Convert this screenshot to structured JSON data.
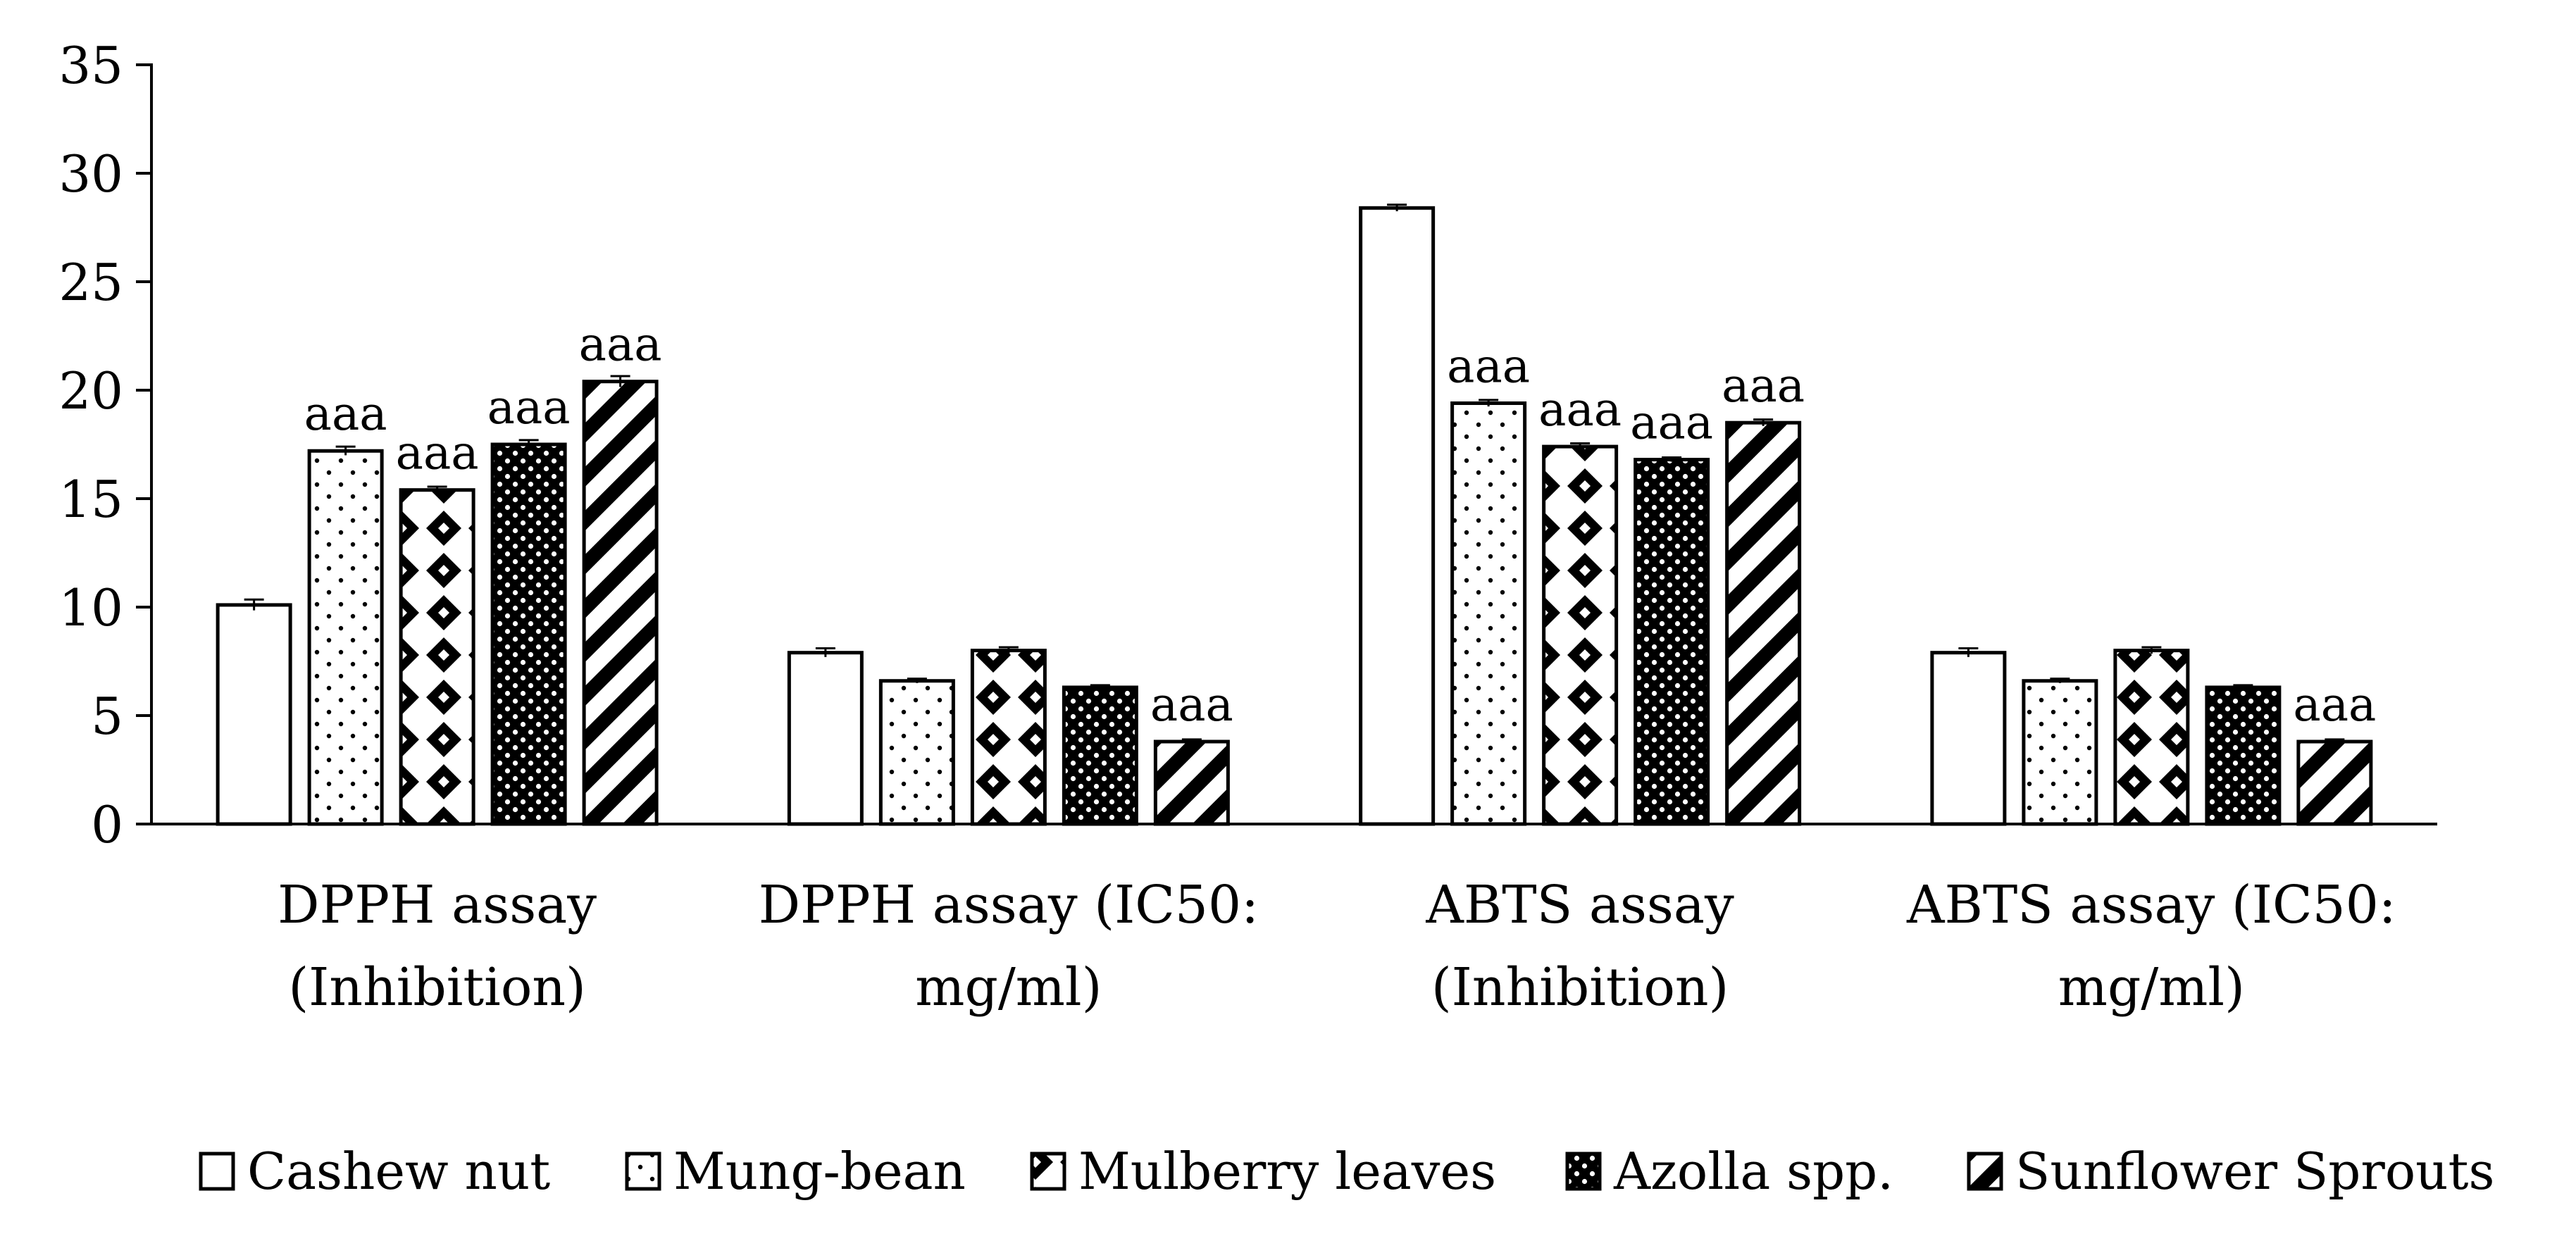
{
  "chart_data": {
    "type": "bar",
    "title": "",
    "xlabel": "",
    "ylabel": "",
    "ylim": [
      0,
      35
    ],
    "yticks": [
      0,
      5,
      10,
      15,
      20,
      25,
      30,
      35
    ],
    "categories": [
      [
        "DPPH assay",
        "(Inhibition)"
      ],
      [
        "DPPH assay (IC50:",
        "mg/ml)"
      ],
      [
        "ABTS assay",
        "(Inhibition)"
      ],
      [
        "ABTS assay (IC50:",
        "mg/ml)"
      ]
    ],
    "series": [
      {
        "name": "Cashew nut",
        "pattern": "none",
        "values": [
          10.1,
          7.9,
          28.4,
          7.9
        ],
        "errors": [
          0.25,
          0.2,
          0.15,
          0.2
        ],
        "annotations": [
          "",
          "",
          "",
          ""
        ]
      },
      {
        "name": "Mung-bean",
        "pattern": "dots",
        "values": [
          17.2,
          6.6,
          19.4,
          6.6
        ],
        "errors": [
          0.2,
          0.1,
          0.15,
          0.1
        ],
        "annotations": [
          "aaa",
          "",
          "aaa",
          ""
        ]
      },
      {
        "name": "Mulberry leaves",
        "pattern": "diamonds",
        "values": [
          15.4,
          8.0,
          17.4,
          8.0
        ],
        "errors": [
          0.15,
          0.15,
          0.15,
          0.15
        ],
        "annotations": [
          "aaa",
          "",
          "aaa",
          ""
        ]
      },
      {
        "name": "Azolla spp.",
        "pattern": "checker",
        "values": [
          17.5,
          6.3,
          16.8,
          6.3
        ],
        "errors": [
          0.2,
          0.1,
          0.1,
          0.1
        ],
        "annotations": [
          "aaa",
          "",
          "aaa",
          ""
        ]
      },
      {
        "name": "Sunflower Sprouts",
        "pattern": "diagonal",
        "values": [
          20.4,
          3.8,
          18.5,
          3.8
        ],
        "errors": [
          0.25,
          0.1,
          0.15,
          0.1
        ],
        "annotations": [
          "aaa",
          "aaa",
          "aaa",
          "aaa"
        ]
      }
    ],
    "legend_position": "bottom",
    "grid": false
  }
}
